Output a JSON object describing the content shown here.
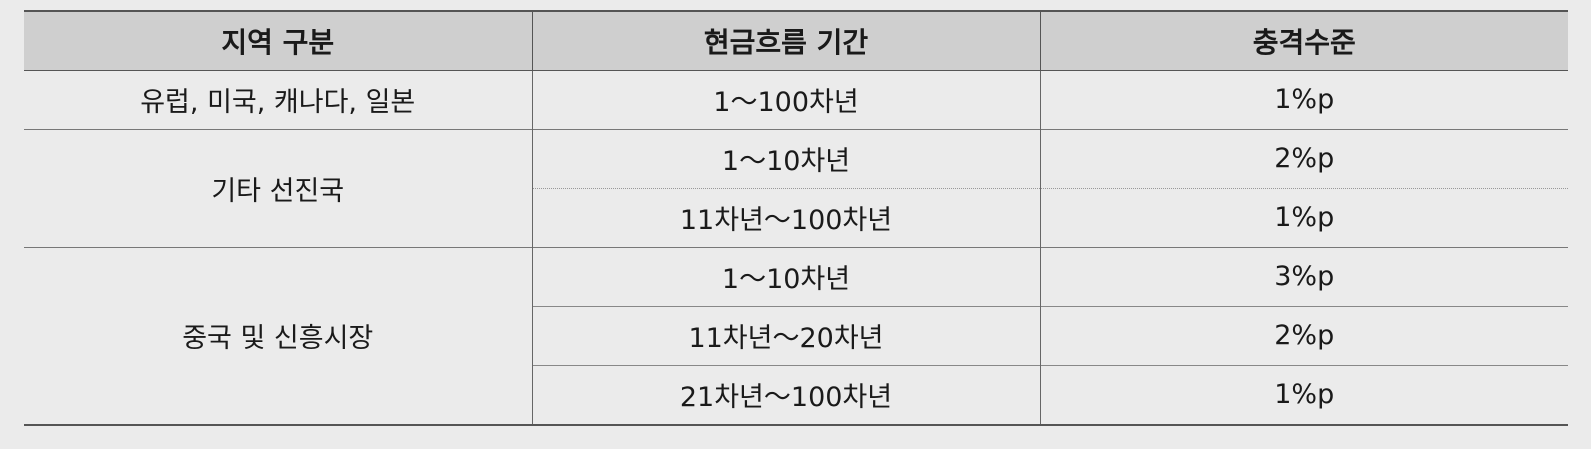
{
  "table": {
    "headers": [
      "지역 구분",
      "현금흐름 기간",
      "충격수준"
    ],
    "regions": [
      {
        "name": "유럽, 미국, 캐나다, 일본",
        "rows": [
          {
            "period": "1～100차년",
            "shock": "1%p"
          }
        ]
      },
      {
        "name": "기타 선진국",
        "rows": [
          {
            "period": "1～10차년",
            "shock": "2%p"
          },
          {
            "period": "11차년～100차년",
            "shock": "1%p"
          }
        ]
      },
      {
        "name": "중국 및 신흥시장",
        "rows": [
          {
            "period": "1～10차년",
            "shock": "3%p"
          },
          {
            "period": "11차년～20차년",
            "shock": "2%p"
          },
          {
            "period": "21차년～100차년",
            "shock": "1%p"
          }
        ]
      }
    ]
  }
}
